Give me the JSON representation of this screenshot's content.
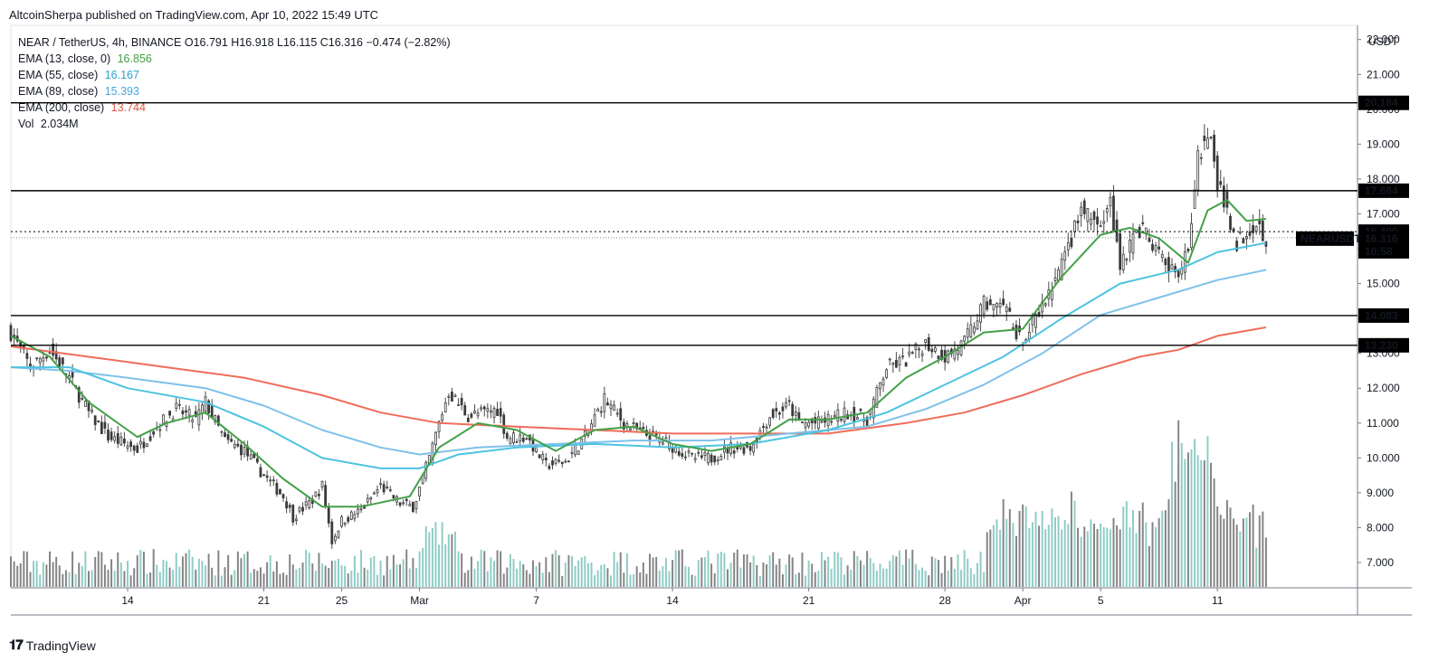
{
  "header": {
    "published": "AltcoinSherpa published on TradingView.com, Apr 10, 2022 15:49 UTC"
  },
  "legend": {
    "symbol_line": "NEAR / TetherUS, 4h, BINANCE  O16.791  H16.918  L16.115  C16.316  −0.474 (−2.82%)",
    "ema13_label": "EMA (13, close, 0)",
    "ema13_value": "16.856",
    "ema55_label": "EMA (55, close)",
    "ema55_value": "16.167",
    "ema89_label": "EMA (89, close)",
    "ema89_value": "15.393",
    "ema200_label": "EMA (200, close)",
    "ema200_value": "13.744",
    "vol_label": "Vol",
    "vol_value": "2.034M"
  },
  "footer": {
    "brand": "TradingView"
  },
  "colors": {
    "ema13": "#43a047",
    "ema55": "#4dc3e0",
    "ema89": "#7ec1ea",
    "ema200": "#ef6c5a",
    "vol_up": "#84c6c0",
    "vol_down": "#777777"
  },
  "chart_data": {
    "type": "candlestick",
    "symbol": "NEARUSDT",
    "currency": "USDT",
    "ylim": [
      6.3,
      22.2
    ],
    "y_ticks": [
      7,
      8,
      9,
      10,
      11,
      12,
      13,
      14,
      15,
      16,
      17,
      18,
      19,
      20,
      21,
      22
    ],
    "y_tick_labels": [
      "7.000",
      "8.000",
      "9.000",
      "10.000",
      "11.000",
      "12.000",
      "13.000",
      "14.000",
      "15.000",
      "16.000",
      "17.000",
      "18.000",
      "19.000",
      "20.000",
      "21.000",
      "22.000"
    ],
    "x_labels": [
      {
        "label": "14",
        "day": 6
      },
      {
        "label": "21",
        "day": 13
      },
      {
        "label": "25",
        "day": 17
      },
      {
        "label": "Mar",
        "day": 21
      },
      {
        "label": "7",
        "day": 27
      },
      {
        "label": "14",
        "day": 34
      },
      {
        "label": "21",
        "day": 41
      },
      {
        "label": "28",
        "day": 48
      },
      {
        "label": "Apr",
        "day": 52
      },
      {
        "label": "5",
        "day": 56
      },
      {
        "label": "11",
        "day": 62
      }
    ],
    "x_range_days": [
      0,
      69.2
    ],
    "horizontal_lines": [
      {
        "value": 20.184,
        "label": "20.184"
      },
      {
        "value": 17.664,
        "label": "17.664"
      },
      {
        "value": 14.083,
        "label": "14.083"
      },
      {
        "value": 13.23,
        "label": "13.230"
      }
    ],
    "price_badges": [
      {
        "value": 16.49,
        "label": "16.490"
      },
      {
        "value": 16.316,
        "label": "16.316",
        "tag": "NEARUSDT",
        "sub": "10:58"
      }
    ],
    "price_anchors": [
      {
        "day": 0,
        "price": 13.6
      },
      {
        "day": 1,
        "price": 12.6
      },
      {
        "day": 2,
        "price": 13.1
      },
      {
        "day": 3,
        "price": 12.3
      },
      {
        "day": 4,
        "price": 11.3
      },
      {
        "day": 5,
        "price": 10.6
      },
      {
        "day": 6.5,
        "price": 10.25
      },
      {
        "day": 7.5,
        "price": 10.9
      },
      {
        "day": 8.5,
        "price": 11.4
      },
      {
        "day": 9.5,
        "price": 11.1
      },
      {
        "day": 10,
        "price": 11.6
      },
      {
        "day": 11,
        "price": 10.5
      },
      {
        "day": 12,
        "price": 10.2
      },
      {
        "day": 13,
        "price": 9.5
      },
      {
        "day": 14,
        "price": 8.9
      },
      {
        "day": 14.5,
        "price": 8.3
      },
      {
        "day": 15.5,
        "price": 8.8
      },
      {
        "day": 16,
        "price": 9.2
      },
      {
        "day": 16.5,
        "price": 7.6
      },
      {
        "day": 17,
        "price": 8.2
      },
      {
        "day": 18,
        "price": 8.5
      },
      {
        "day": 19,
        "price": 9.2
      },
      {
        "day": 20,
        "price": 8.7
      },
      {
        "day": 20.7,
        "price": 8.6
      },
      {
        "day": 21.5,
        "price": 10.0
      },
      {
        "day": 22,
        "price": 11.0
      },
      {
        "day": 22.5,
        "price": 11.9
      },
      {
        "day": 23.5,
        "price": 11.2
      },
      {
        "day": 25,
        "price": 11.4
      },
      {
        "day": 25.5,
        "price": 10.6
      },
      {
        "day": 26.5,
        "price": 10.6
      },
      {
        "day": 27.5,
        "price": 9.8
      },
      {
        "day": 28.5,
        "price": 9.9
      },
      {
        "day": 29.5,
        "price": 10.6
      },
      {
        "day": 30.5,
        "price": 11.7
      },
      {
        "day": 31.5,
        "price": 11.0
      },
      {
        "day": 32.5,
        "price": 10.7
      },
      {
        "day": 33.5,
        "price": 10.5
      },
      {
        "day": 35,
        "price": 10.0
      },
      {
        "day": 36,
        "price": 10.0
      },
      {
        "day": 37,
        "price": 10.3
      },
      {
        "day": 38,
        "price": 10.3
      },
      {
        "day": 39,
        "price": 11.2
      },
      {
        "day": 40,
        "price": 11.5
      },
      {
        "day": 40.5,
        "price": 11.0
      },
      {
        "day": 41.5,
        "price": 11.0
      },
      {
        "day": 43,
        "price": 11.3
      },
      {
        "day": 44,
        "price": 11.1
      },
      {
        "day": 45,
        "price": 12.6
      },
      {
        "day": 46,
        "price": 12.8
      },
      {
        "day": 47,
        "price": 13.3
      },
      {
        "day": 48,
        "price": 12.9
      },
      {
        "day": 49,
        "price": 13.3
      },
      {
        "day": 50,
        "price": 14.4
      },
      {
        "day": 51,
        "price": 14.3
      },
      {
        "day": 52,
        "price": 13.3
      },
      {
        "day": 53,
        "price": 14.3
      },
      {
        "day": 54,
        "price": 15.5
      },
      {
        "day": 55,
        "price": 17.1
      },
      {
        "day": 56,
        "price": 16.6
      },
      {
        "day": 56.5,
        "price": 17.3
      },
      {
        "day": 57,
        "price": 15.6
      },
      {
        "day": 58,
        "price": 16.6
      },
      {
        "day": 59,
        "price": 15.8
      },
      {
        "day": 60,
        "price": 15.1
      },
      {
        "day": 60.5,
        "price": 16.1
      },
      {
        "day": 61,
        "price": 18.8
      },
      {
        "day": 61.6,
        "price": 19.3
      },
      {
        "day": 62,
        "price": 17.8
      },
      {
        "day": 62.5,
        "price": 17.1
      },
      {
        "day": 63,
        "price": 16.2
      },
      {
        "day": 64,
        "price": 16.8
      },
      {
        "day": 64.5,
        "price": 16.3
      }
    ],
    "ema13": [
      {
        "day": 0,
        "v": 13.5
      },
      {
        "day": 2,
        "v": 12.9
      },
      {
        "day": 4,
        "v": 11.6
      },
      {
        "day": 6.5,
        "v": 10.6
      },
      {
        "day": 8,
        "v": 11.0
      },
      {
        "day": 10,
        "v": 11.3
      },
      {
        "day": 12,
        "v": 10.4
      },
      {
        "day": 14,
        "v": 9.4
      },
      {
        "day": 16,
        "v": 8.6
      },
      {
        "day": 18,
        "v": 8.6
      },
      {
        "day": 20.5,
        "v": 8.9
      },
      {
        "day": 22,
        "v": 10.3
      },
      {
        "day": 24,
        "v": 11.0
      },
      {
        "day": 26,
        "v": 10.8
      },
      {
        "day": 28,
        "v": 10.2
      },
      {
        "day": 30,
        "v": 10.8
      },
      {
        "day": 32,
        "v": 10.9
      },
      {
        "day": 34,
        "v": 10.4
      },
      {
        "day": 36,
        "v": 10.2
      },
      {
        "day": 38,
        "v": 10.4
      },
      {
        "day": 40,
        "v": 11.1
      },
      {
        "day": 42,
        "v": 11.1
      },
      {
        "day": 44,
        "v": 11.3
      },
      {
        "day": 46,
        "v": 12.3
      },
      {
        "day": 48,
        "v": 12.9
      },
      {
        "day": 50,
        "v": 13.6
      },
      {
        "day": 52,
        "v": 13.7
      },
      {
        "day": 54,
        "v": 15.2
      },
      {
        "day": 56,
        "v": 16.4
      },
      {
        "day": 57.5,
        "v": 16.6
      },
      {
        "day": 59,
        "v": 16.3
      },
      {
        "day": 60.5,
        "v": 15.6
      },
      {
        "day": 61.5,
        "v": 17.1
      },
      {
        "day": 62.5,
        "v": 17.4
      },
      {
        "day": 63.5,
        "v": 16.8
      },
      {
        "day": 64.5,
        "v": 16.856
      }
    ],
    "ema55": [
      {
        "day": 0,
        "v": 12.6
      },
      {
        "day": 3,
        "v": 12.6
      },
      {
        "day": 6,
        "v": 12.0
      },
      {
        "day": 10,
        "v": 11.6
      },
      {
        "day": 13,
        "v": 10.9
      },
      {
        "day": 16,
        "v": 10.0
      },
      {
        "day": 19,
        "v": 9.7
      },
      {
        "day": 21,
        "v": 9.7
      },
      {
        "day": 23,
        "v": 10.1
      },
      {
        "day": 26,
        "v": 10.3
      },
      {
        "day": 30,
        "v": 10.4
      },
      {
        "day": 34,
        "v": 10.3
      },
      {
        "day": 38,
        "v": 10.4
      },
      {
        "day": 42,
        "v": 10.8
      },
      {
        "day": 45,
        "v": 11.3
      },
      {
        "day": 48,
        "v": 12.1
      },
      {
        "day": 51,
        "v": 12.9
      },
      {
        "day": 54,
        "v": 14.0
      },
      {
        "day": 57,
        "v": 15.0
      },
      {
        "day": 60,
        "v": 15.4
      },
      {
        "day": 62,
        "v": 15.9
      },
      {
        "day": 64.5,
        "v": 16.167
      }
    ],
    "ema89": [
      {
        "day": 0,
        "v": 12.6
      },
      {
        "day": 3,
        "v": 12.5
      },
      {
        "day": 6,
        "v": 12.3
      },
      {
        "day": 10,
        "v": 12.0
      },
      {
        "day": 13,
        "v": 11.5
      },
      {
        "day": 16,
        "v": 10.8
      },
      {
        "day": 19,
        "v": 10.3
      },
      {
        "day": 21,
        "v": 10.1
      },
      {
        "day": 24,
        "v": 10.3
      },
      {
        "day": 28,
        "v": 10.4
      },
      {
        "day": 32,
        "v": 10.5
      },
      {
        "day": 36,
        "v": 10.5
      },
      {
        "day": 40,
        "v": 10.7
      },
      {
        "day": 44,
        "v": 10.9
      },
      {
        "day": 47,
        "v": 11.4
      },
      {
        "day": 50,
        "v": 12.1
      },
      {
        "day": 53,
        "v": 13.0
      },
      {
        "day": 56,
        "v": 14.1
      },
      {
        "day": 59,
        "v": 14.6
      },
      {
        "day": 62,
        "v": 15.1
      },
      {
        "day": 64.5,
        "v": 15.393
      }
    ],
    "ema200": [
      {
        "day": 0,
        "v": 13.2
      },
      {
        "day": 4,
        "v": 12.9
      },
      {
        "day": 8,
        "v": 12.6
      },
      {
        "day": 12,
        "v": 12.3
      },
      {
        "day": 16,
        "v": 11.8
      },
      {
        "day": 19,
        "v": 11.3
      },
      {
        "day": 22,
        "v": 11.0
      },
      {
        "day": 26,
        "v": 10.9
      },
      {
        "day": 30,
        "v": 10.8
      },
      {
        "day": 34,
        "v": 10.7
      },
      {
        "day": 38,
        "v": 10.7
      },
      {
        "day": 42,
        "v": 10.7
      },
      {
        "day": 46,
        "v": 11.0
      },
      {
        "day": 49,
        "v": 11.3
      },
      {
        "day": 52,
        "v": 11.8
      },
      {
        "day": 55,
        "v": 12.4
      },
      {
        "day": 58,
        "v": 12.9
      },
      {
        "day": 60,
        "v": 13.1
      },
      {
        "day": 62,
        "v": 13.5
      },
      {
        "day": 64.5,
        "v": 13.744
      }
    ]
  }
}
